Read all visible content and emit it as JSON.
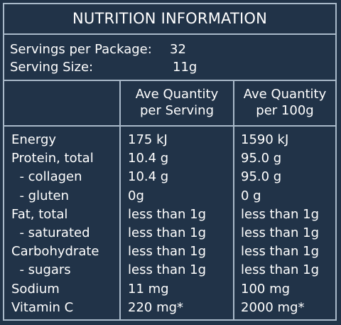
{
  "title": "NUTRITION INFORMATION",
  "servings": {
    "per_package_label": "Servings per Package:",
    "per_package_value": "32",
    "size_label": "Serving Size:",
    "size_value": "11g"
  },
  "headers": {
    "per_serving_line1": "Ave Quantity",
    "per_serving_line2": "per Serving",
    "per_100g_line1": "Ave Quantity",
    "per_100g_line2": "per 100g"
  },
  "rows": [
    {
      "name": "Energy",
      "per_serving": "175 kJ",
      "per_100g": "1590 kJ"
    },
    {
      "name": "Protein, total",
      "per_serving": "10.4 g",
      "per_100g": "95.0 g"
    },
    {
      "name": "  - collagen",
      "per_serving": "10.4 g",
      "per_100g": "95.0 g"
    },
    {
      "name": "  - gluten",
      "per_serving": "0g",
      "per_100g": "0 g"
    },
    {
      "name": "Fat, total",
      "per_serving": "less than 1g",
      "per_100g": "less than 1g"
    },
    {
      "name": "  - saturated",
      "per_serving": "less than 1g",
      "per_100g": "less than 1g"
    },
    {
      "name": "Carbohydrate",
      "per_serving": "less than 1g",
      "per_100g": "less than 1g"
    },
    {
      "name": "  - sugars",
      "per_serving": "less than 1g",
      "per_100g": "less than 1g"
    },
    {
      "name": "Sodium",
      "per_serving": "11 mg",
      "per_100g": "100 mg"
    },
    {
      "name": "Vitamin C",
      "per_serving": "220 mg*",
      "per_100g": "2000 mg*"
    }
  ]
}
